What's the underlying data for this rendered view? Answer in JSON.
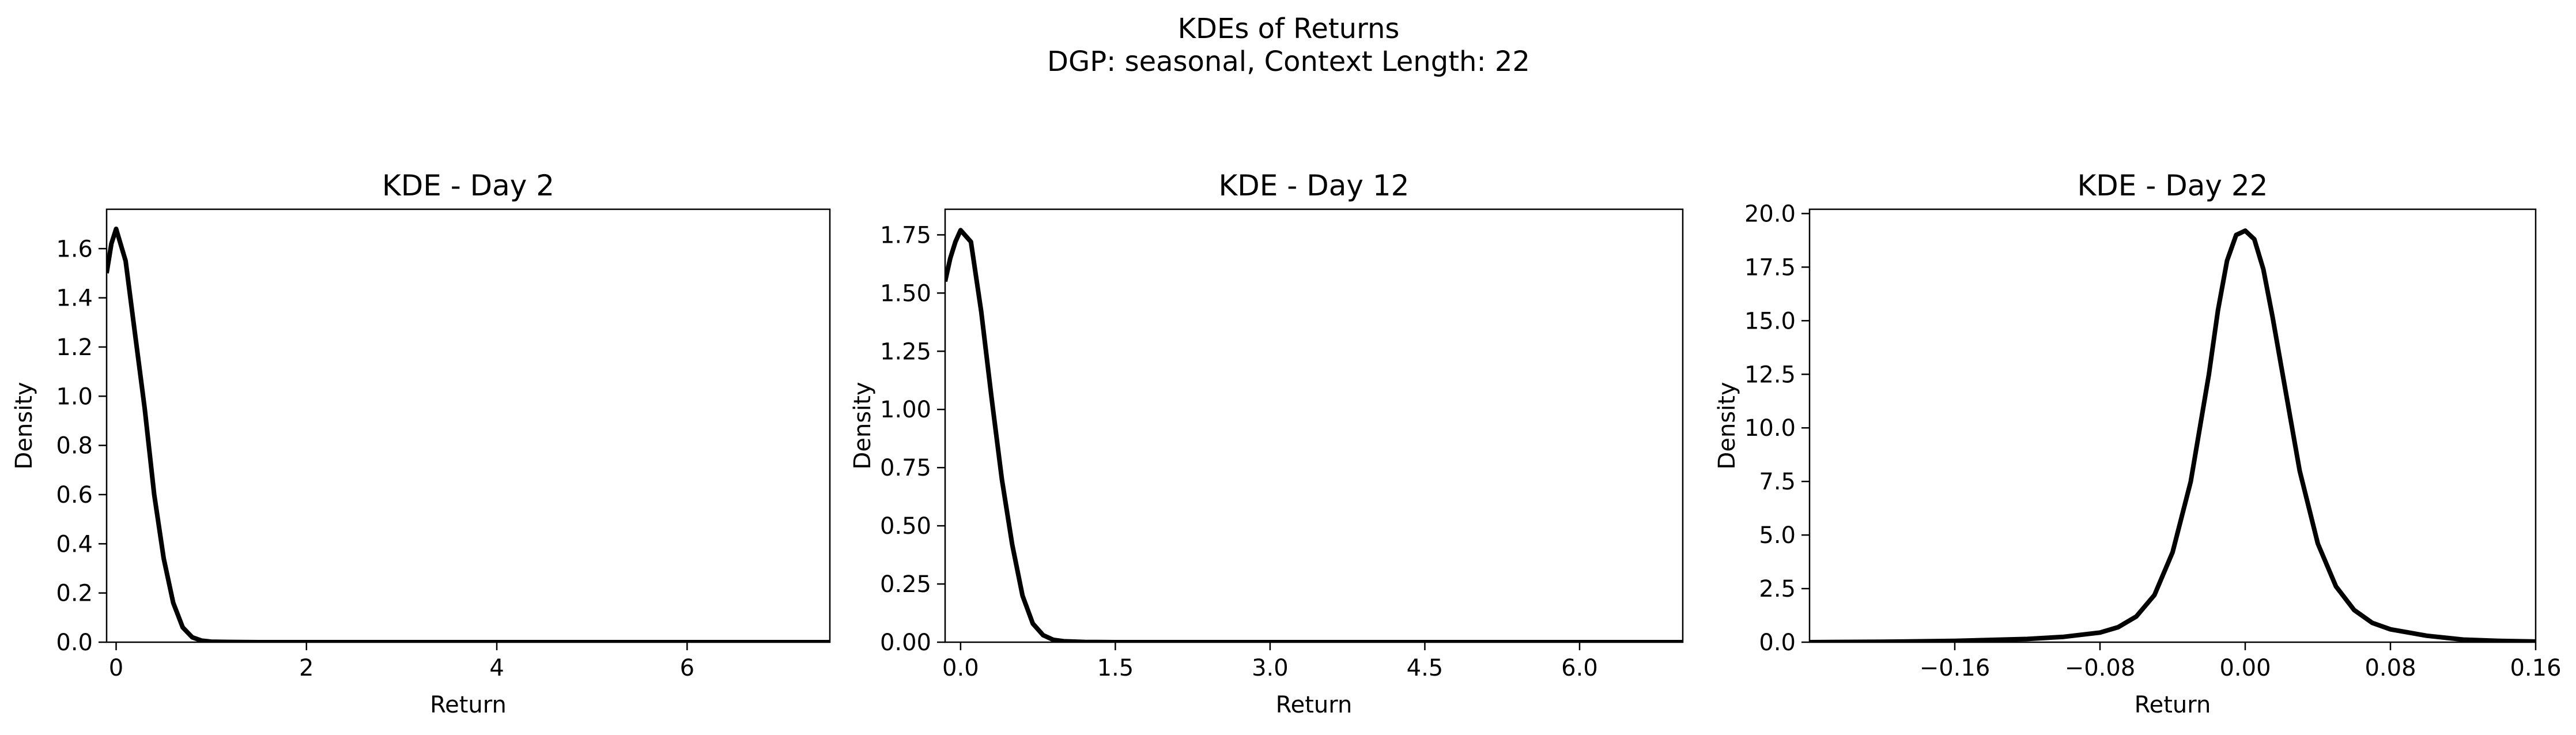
{
  "figure": {
    "title_line1": "KDEs of Returns",
    "title_line2": "DGP: seasonal, Context Length: 22"
  },
  "chart_data": [
    {
      "type": "line",
      "title": "KDE - Day 2",
      "xlabel": "Return",
      "ylabel": "Density",
      "xlim": [
        -0.1,
        7.5
      ],
      "ylim": [
        0,
        1.76
      ],
      "xticks": [
        0,
        2,
        4,
        6
      ],
      "xtick_labels": [
        "0",
        "2",
        "4",
        "6"
      ],
      "yticks": [
        0.0,
        0.2,
        0.4,
        0.6,
        0.8,
        1.0,
        1.2,
        1.4,
        1.6
      ],
      "ytick_labels": [
        "0.0",
        "0.2",
        "0.4",
        "0.6",
        "0.8",
        "1.0",
        "1.2",
        "1.4",
        "1.6"
      ],
      "grid": false,
      "color": "#000000",
      "series": [
        {
          "x": [
            -0.1,
            -0.05,
            0.0,
            0.1,
            0.2,
            0.3,
            0.4,
            0.5,
            0.6,
            0.7,
            0.8,
            0.9,
            1.0,
            1.2,
            1.5,
            2.0,
            3.0,
            4.0,
            5.0,
            6.0,
            7.0,
            7.5
          ],
          "y": [
            1.5,
            1.62,
            1.68,
            1.55,
            1.25,
            0.95,
            0.6,
            0.34,
            0.16,
            0.06,
            0.02,
            0.006,
            0.002,
            0.001,
            0.0,
            0.0,
            0.0,
            0.0,
            0.0,
            0.0,
            0.0,
            0.0
          ]
        }
      ]
    },
    {
      "type": "line",
      "title": "KDE - Day 12",
      "xlabel": "Return",
      "ylabel": "Density",
      "xlim": [
        -0.15,
        7.0
      ],
      "ylim": [
        0,
        1.86
      ],
      "xticks": [
        0.0,
        1.5,
        3.0,
        4.5,
        6.0
      ],
      "xtick_labels": [
        "0.0",
        "1.5",
        "3.0",
        "4.5",
        "6.0"
      ],
      "yticks": [
        0.0,
        0.25,
        0.5,
        0.75,
        1.0,
        1.25,
        1.5,
        1.75
      ],
      "ytick_labels": [
        "0.00",
        "0.25",
        "0.50",
        "0.75",
        "1.00",
        "1.25",
        "1.50",
        "1.75"
      ],
      "grid": false,
      "color": "#000000",
      "series": [
        {
          "x": [
            -0.15,
            -0.1,
            -0.05,
            0.0,
            0.1,
            0.2,
            0.3,
            0.4,
            0.5,
            0.6,
            0.7,
            0.8,
            0.9,
            1.0,
            1.2,
            1.5,
            2.0,
            3.0,
            4.0,
            5.0,
            6.0,
            7.0
          ],
          "y": [
            1.55,
            1.65,
            1.72,
            1.77,
            1.72,
            1.42,
            1.05,
            0.7,
            0.42,
            0.2,
            0.08,
            0.03,
            0.01,
            0.004,
            0.001,
            0.0,
            0.0,
            0.0,
            0.0,
            0.0,
            0.0,
            0.0
          ]
        }
      ]
    },
    {
      "type": "line",
      "title": "KDE - Day 22",
      "xlabel": "Return",
      "ylabel": "Density",
      "xlim": [
        -0.24,
        0.16
      ],
      "ylim": [
        0,
        20.2
      ],
      "xticks": [
        -0.16,
        -0.08,
        0.0,
        0.08,
        0.16
      ],
      "xtick_labels": [
        "−0.16",
        "−0.08",
        "0.00",
        "0.08",
        "0.16"
      ],
      "yticks": [
        0.0,
        2.5,
        5.0,
        7.5,
        10.0,
        12.5,
        15.0,
        17.5,
        20.0
      ],
      "ytick_labels": [
        "0.0",
        "2.5",
        "5.0",
        "7.5",
        "10.0",
        "12.5",
        "15.0",
        "17.5",
        "20.0"
      ],
      "grid": false,
      "color": "#000000",
      "series": [
        {
          "x": [
            -0.24,
            -0.2,
            -0.16,
            -0.12,
            -0.1,
            -0.08,
            -0.07,
            -0.06,
            -0.05,
            -0.04,
            -0.03,
            -0.02,
            -0.015,
            -0.01,
            -0.005,
            0.0,
            0.005,
            0.01,
            0.015,
            0.02,
            0.03,
            0.04,
            0.05,
            0.06,
            0.07,
            0.08,
            0.1,
            0.12,
            0.14,
            0.16
          ],
          "y": [
            0.0,
            0.02,
            0.06,
            0.15,
            0.25,
            0.45,
            0.7,
            1.2,
            2.2,
            4.2,
            7.5,
            12.5,
            15.5,
            17.8,
            19.0,
            19.2,
            18.8,
            17.4,
            15.2,
            12.8,
            8.0,
            4.6,
            2.6,
            1.5,
            0.9,
            0.6,
            0.3,
            0.12,
            0.06,
            0.03
          ]
        }
      ]
    }
  ]
}
